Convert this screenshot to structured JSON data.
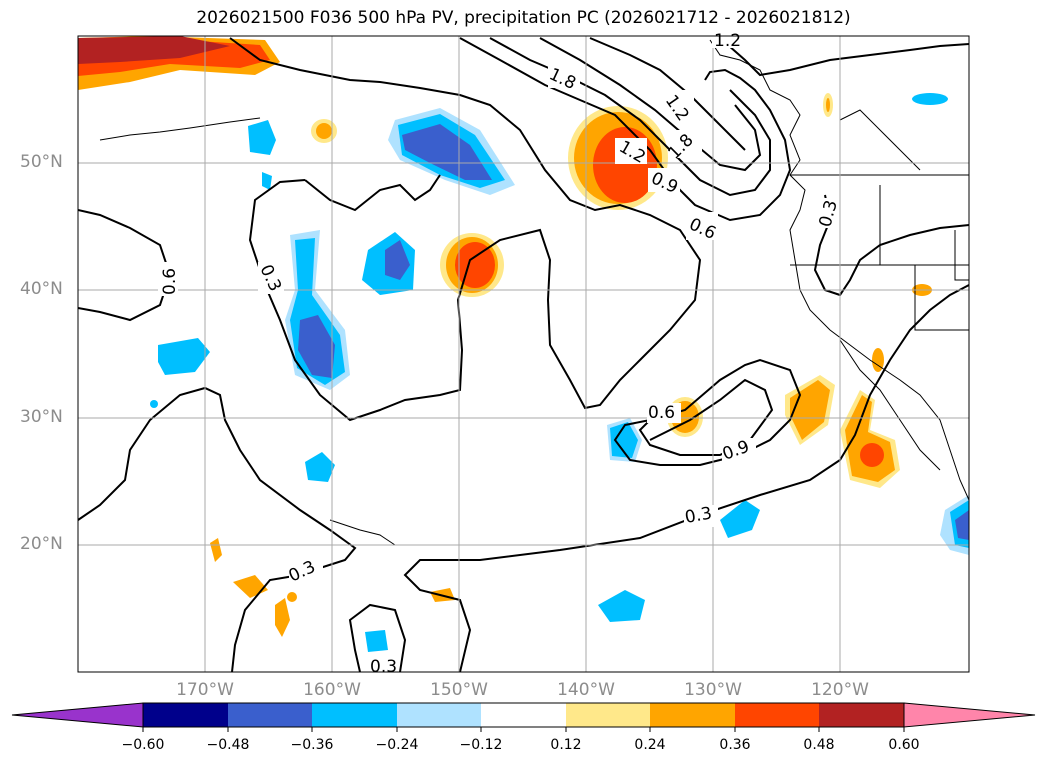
{
  "title": "2026021500 F036 500 hPa PV, precipitation PC (2026021712 - 2026021812)",
  "lat_labels": [
    "50°N",
    "40°N",
    "30°N",
    "20°N"
  ],
  "lon_labels": [
    "170°W",
    "160°W",
    "150°W",
    "140°W",
    "130°W",
    "120°W"
  ],
  "contour_labels": [
    "0.6",
    "0.3",
    "1.8",
    "1.2",
    "1.8",
    "1.2",
    "0.9",
    "0.6",
    "0.3",
    "0.6",
    "0.9",
    "0.3",
    "0.3",
    "0.3",
    "1.2"
  ],
  "colorbar": {
    "colors": [
      "#9933cc",
      "#00008b",
      "#3a5fcd",
      "#00bfff",
      "#afe2ff",
      "#ffffff",
      "#ffe88a",
      "#ffa500",
      "#ff4500",
      "#b22222",
      "#ff85aa"
    ],
    "tick_labels": [
      "−0.60",
      "−0.48",
      "−0.36",
      "−0.24",
      "−0.12",
      "0.12",
      "0.24",
      "0.36",
      "0.48",
      "0.60"
    ]
  }
}
